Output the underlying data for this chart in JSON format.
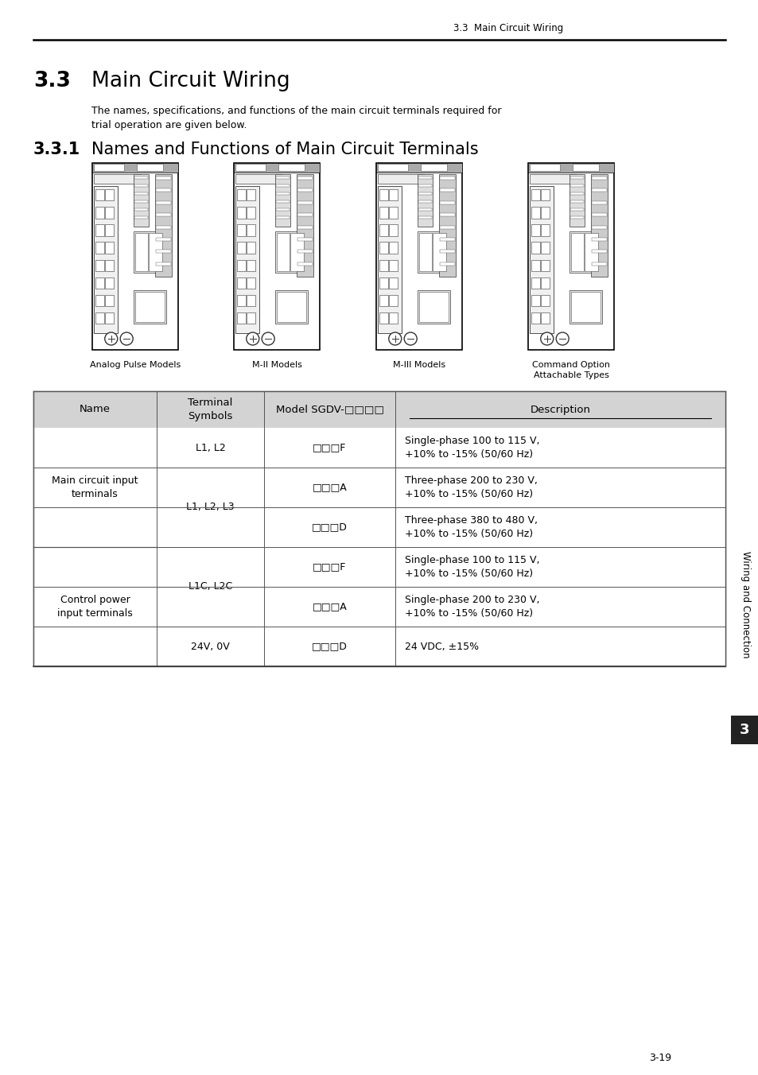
{
  "page_header": "3.3  Main Circuit Wiring",
  "section_number": "3.3",
  "section_title": "Main Circuit Wiring",
  "intro_text_line1": "The names, specifications, and functions of the main circuit terminals required for",
  "intro_text_line2": "trial operation are given below.",
  "subsection_number": "3.3.1",
  "subsection_title": "Names and Functions of Main Circuit Terminals",
  "device_labels": [
    "Analog Pulse Models",
    "M-II Models",
    "M-III Models",
    "Command Option\nAttachable Types"
  ],
  "table_header_bg": "#d3d3d3",
  "table_col_headers": [
    "Name",
    "Terminal\nSymbols",
    "Model SGDV-□□□□",
    "Description"
  ],
  "rows": [
    {
      "col1": "L1, L2",
      "col2": "□□□F",
      "col3": "Single-phase 100 to 115 V,\n+10% to -15% (50/60 Hz)"
    },
    {
      "col1": "",
      "col2": "□□□A",
      "col3": "Three-phase 200 to 230 V,\n+10% to -15% (50/60 Hz)"
    },
    {
      "col1": "L1, L2, L3",
      "col2": "□□□D",
      "col3": "Three-phase 380 to 480 V,\n+10% to -15% (50/60 Hz)"
    },
    {
      "col1": "",
      "col2": "□□□F",
      "col3": "Single-phase 100 to 115 V,\n+10% to -15% (50/60 Hz)"
    },
    {
      "col1": "L1C, L2C",
      "col2": "□□□A",
      "col3": "Single-phase 200 to 230 V,\n+10% to -15% (50/60 Hz)"
    },
    {
      "col1": "24V, 0V",
      "col2": "□□□D",
      "col3": "24 VDC, ±15%"
    }
  ],
  "name_groups": [
    {
      "label": "Main circuit input\nterminals",
      "rows": [
        0,
        1,
        2
      ]
    },
    {
      "label": "Control power\ninput terminals",
      "rows": [
        3,
        4,
        5
      ]
    }
  ],
  "terminal_groups": [
    {
      "label": "L1, L2",
      "rows": [
        0
      ]
    },
    {
      "label": "L1, L2, L3",
      "rows": [
        1,
        2
      ]
    },
    {
      "label": "L1C, L2C",
      "rows": [
        3,
        4
      ]
    },
    {
      "label": "24V, 0V",
      "rows": [
        5
      ]
    }
  ],
  "sidebar_text": "Wiring and Connection",
  "sidebar_tab": "3",
  "footer_text": "3-19",
  "bg_color": "#ffffff"
}
